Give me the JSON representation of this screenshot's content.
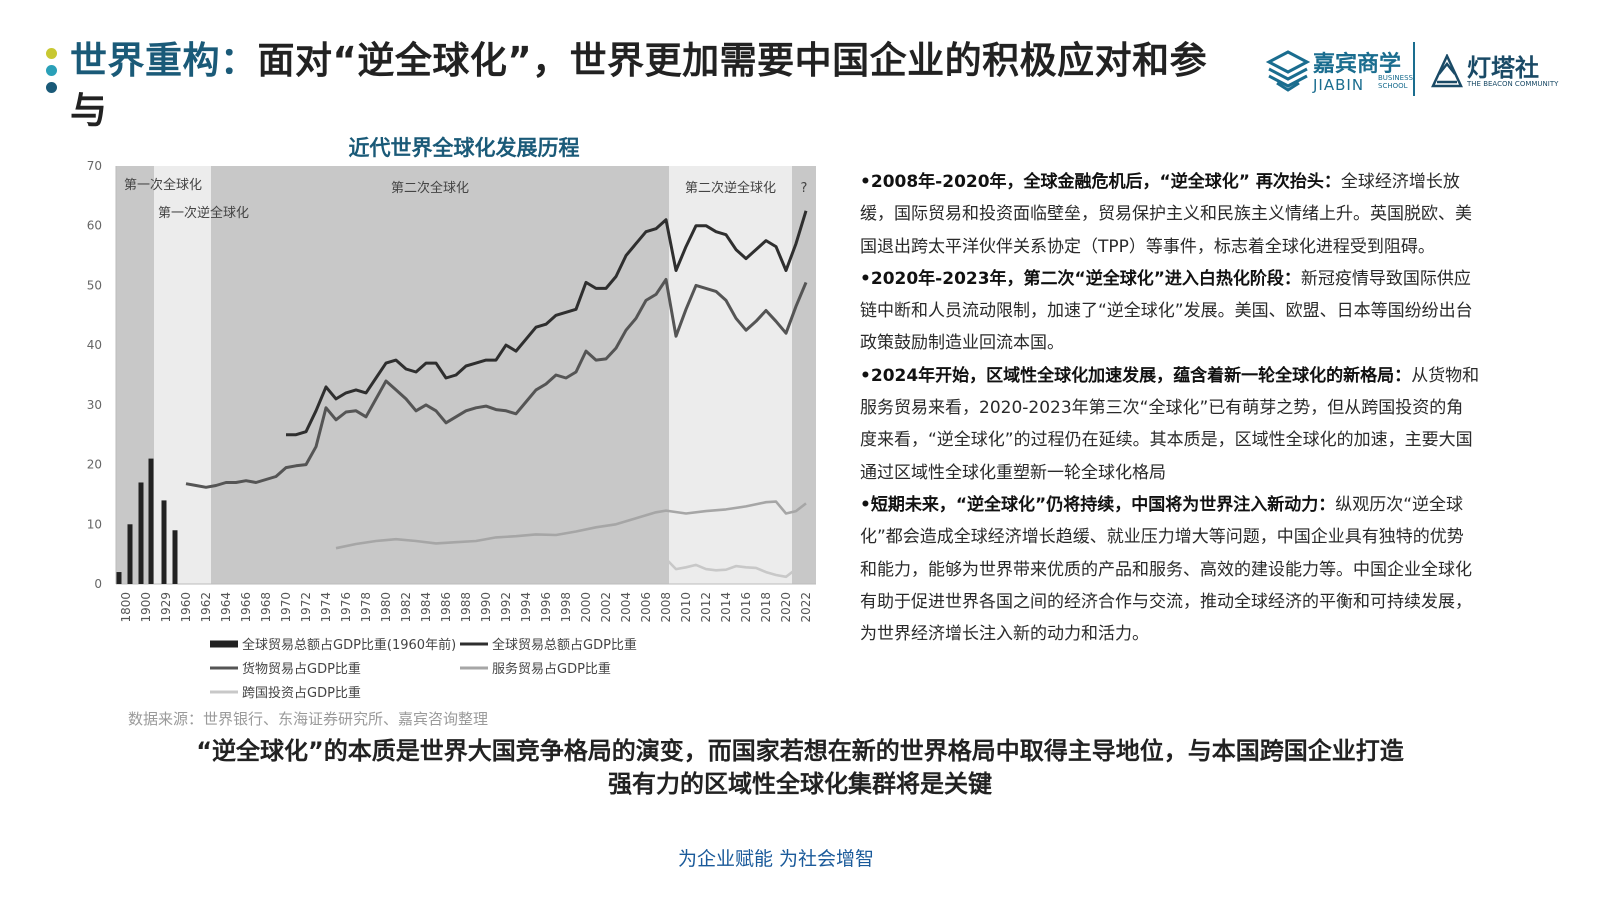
{
  "header": {
    "title_highlight": "世界重构：",
    "title_rest": "面对“逆全球化”，世界更加需要中国企业的积极应对和参与",
    "dots": [
      "#c8c832",
      "#2aa0b8",
      "#1a5a78"
    ],
    "logo1": {
      "name": "嘉宾商学",
      "sub": "JIABIN",
      "sub2a": "BUSINESS",
      "sub2b": "SCHOOL",
      "icon": "layered-diamond-logo-icon"
    },
    "logo2": {
      "name": "灯塔社",
      "sub": "THE BEACON COMMUNITY",
      "icon": "lighthouse-logo-icon"
    }
  },
  "chart_title": "近代世界全球化发展历程",
  "chart_data": {
    "type": "line",
    "title": "近代世界全球化发展历程",
    "xlabel": "",
    "ylabel": "",
    "ylim": [
      0,
      70
    ],
    "yticks": [
      0,
      10,
      20,
      30,
      40,
      50,
      60,
      70
    ],
    "grid": false,
    "legend_position": "bottom",
    "x_tick_labels": [
      "1800",
      "1900",
      "1929",
      "1960",
      "1962",
      "1964",
      "1966",
      "1968",
      "1970",
      "1972",
      "1974",
      "1976",
      "1978",
      "1980",
      "1982",
      "1984",
      "1986",
      "1988",
      "1990",
      "1992",
      "1994",
      "1996",
      "1998",
      "2000",
      "2002",
      "2004",
      "2006",
      "2008",
      "2010",
      "2012",
      "2014",
      "2016",
      "2018",
      "2020",
      "2022"
    ],
    "eras": [
      {
        "label": "第一次全球化",
        "from": "1800",
        "to": "1913",
        "shade": "#c8c8c8"
      },
      {
        "label": "第一次逆全球化",
        "from": "1913",
        "to": "1962",
        "shade": "#ececec"
      },
      {
        "label": "第二次全球化",
        "from": "1962",
        "to": "2008",
        "shade": "#c8c8c8"
      },
      {
        "label": "第二次逆全球化",
        "from": "2008",
        "to": "2020",
        "shade": "#ececec"
      },
      {
        "label": "?",
        "from": "2020",
        "to": "2022",
        "shade": "#c8c8c8"
      }
    ],
    "bar_series": {
      "name": "全球贸易总额占GDP比重(1960年前)",
      "color": "#222222",
      "x": [
        1800,
        1880,
        1900,
        1913,
        1929,
        1938
      ],
      "values": [
        2,
        10,
        17,
        21,
        14,
        9
      ]
    },
    "series": [
      {
        "name": "全球贸易总额占GDP比重",
        "color": "#2f2f2f",
        "x": [
          1970,
          1971,
          1972,
          1973,
          1974,
          1975,
          1976,
          1977,
          1978,
          1979,
          1980,
          1981,
          1982,
          1983,
          1984,
          1985,
          1986,
          1987,
          1988,
          1989,
          1990,
          1991,
          1992,
          1993,
          1994,
          1995,
          1996,
          1997,
          1998,
          1999,
          2000,
          2001,
          2002,
          2003,
          2004,
          2005,
          2006,
          2007,
          2008,
          2009,
          2010,
          2011,
          2012,
          2013,
          2014,
          2015,
          2016,
          2017,
          2018,
          2019,
          2020,
          2021,
          2022
        ],
        "values": [
          25,
          25,
          25.5,
          29,
          33,
          31,
          32,
          32.5,
          32,
          34.5,
          37,
          37.5,
          36,
          35.5,
          37,
          37,
          34.5,
          35,
          36.5,
          37,
          37.5,
          37.5,
          40,
          39,
          41,
          43,
          43.5,
          45,
          45.5,
          46,
          50.5,
          49.5,
          49.5,
          51.5,
          55,
          57,
          59,
          59.5,
          61,
          52.5,
          56.5,
          60,
          60,
          59,
          58.5,
          56,
          54.5,
          56,
          57.5,
          56.5,
          52.5,
          57,
          62.5
        ]
      },
      {
        "name": "货物贸易占GDP比重",
        "color": "#555555",
        "x": [
          1960,
          1961,
          1962,
          1963,
          1964,
          1965,
          1966,
          1967,
          1968,
          1969,
          1970,
          1971,
          1972,
          1973,
          1974,
          1975,
          1976,
          1977,
          1978,
          1979,
          1980,
          1981,
          1982,
          1983,
          1984,
          1985,
          1986,
          1987,
          1988,
          1989,
          1990,
          1991,
          1992,
          1993,
          1994,
          1995,
          1996,
          1997,
          1998,
          1999,
          2000,
          2001,
          2002,
          2003,
          2004,
          2005,
          2006,
          2007,
          2008,
          2009,
          2010,
          2011,
          2012,
          2013,
          2014,
          2015,
          2016,
          2017,
          2018,
          2019,
          2020,
          2021,
          2022
        ],
        "values": [
          16.8,
          16.5,
          16.2,
          16.5,
          17,
          17,
          17.3,
          17,
          17.5,
          18,
          19.5,
          19.8,
          20,
          23,
          29.5,
          27.5,
          28.8,
          29,
          28,
          31,
          34,
          32.5,
          31,
          29,
          30,
          29,
          27,
          28,
          29,
          29.5,
          29.8,
          29.2,
          29,
          28.5,
          30.5,
          32.5,
          33.5,
          35,
          34.5,
          35.5,
          39,
          37.5,
          37.7,
          39.5,
          42.5,
          44.5,
          47.5,
          48.5,
          51,
          41.5,
          46,
          50,
          49.5,
          49,
          47.5,
          44.5,
          42.5,
          44,
          45.8,
          44,
          42,
          46.5,
          50.5
        ]
      },
      {
        "name": "服务贸易占GDP比重",
        "color": "#a6a6a6",
        "x": [
          1975,
          1977,
          1979,
          1981,
          1983,
          1985,
          1987,
          1989,
          1991,
          1993,
          1995,
          1997,
          1999,
          2001,
          2003,
          2005,
          2007,
          2008,
          2010,
          2012,
          2014,
          2016,
          2018,
          2019,
          2020,
          2021,
          2022
        ],
        "values": [
          6,
          6.7,
          7.2,
          7.5,
          7.2,
          6.8,
          7,
          7.2,
          7.8,
          8,
          8.3,
          8.2,
          8.8,
          9.5,
          10,
          11,
          12,
          12.3,
          11.8,
          12.2,
          12.5,
          13,
          13.7,
          13.8,
          11.8,
          12.2,
          13.5
        ]
      },
      {
        "name": "跨国投资占GDP比重",
        "color": "#c8c8c8",
        "x": [
          1970,
          1972,
          1974,
          1976,
          1978,
          1980,
          1982,
          1984,
          1986,
          1988,
          1990,
          1992,
          1994,
          1996,
          1998,
          1999,
          2000,
          2001,
          2002,
          2003,
          2004,
          2005,
          2006,
          2007,
          2008,
          2009,
          2010,
          2011,
          2012,
          2013,
          2014,
          2015,
          2016,
          2017,
          2018,
          2019,
          2020,
          2021,
          2022
        ],
        "values": [
          0.6,
          0.5,
          0.5,
          0.4,
          0.5,
          0.6,
          0.5,
          0.5,
          0.7,
          0.9,
          1.2,
          0.9,
          1.1,
          1.5,
          2.3,
          3.8,
          4.3,
          2.5,
          2,
          2,
          2.5,
          3.5,
          4.5,
          5.5,
          4.2,
          2.5,
          2.8,
          3.2,
          2.5,
          2.3,
          2.4,
          3,
          2.8,
          2.7,
          2,
          1.5,
          1.2,
          2.5,
          2
        ]
      }
    ]
  },
  "legend": {
    "bar": "全球贸易总额占GDP比重(1960年前)",
    "total": "全球贸易总额占GDP比重",
    "goods": "货物贸易占GDP比重",
    "services": "服务贸易占GDP比重",
    "investment": "跨国投资占GDP比重"
  },
  "source": "数据来源：世界银行、东海证券研究所、嘉宾咨询整理",
  "bullets": [
    {
      "head": "•2008年-2020年，全球金融危机后，“逆全球化” 再次抬头：",
      "body": "全球经济增长放缓，国际贸易和投资面临壁垒，贸易保护主义和民族主义情绪上升。英国脱欧、美国退出跨太平洋伙伴关系协定（TPP）等事件，标志着全球化进程受到阻碍。"
    },
    {
      "head": "•2020年-2023年，第二次“逆全球化”进入白热化阶段：",
      "body": "新冠疫情导致国际供应链中断和人员流动限制，加速了“逆全球化”发展。美国、欧盟、日本等国纷纷出台政策鼓励制造业回流本国。"
    },
    {
      "head": "•2024年开始，区域性全球化加速发展，蕴含着新一轮全球化的新格局：",
      "body": "从货物和服务贸易来看，2020-2023年第三次“全球化”已有萌芽之势，但从跨国投资的角度来看，“逆全球化”的过程仍在延续。其本质是，区域性全球化的加速，主要大国通过区域性全球化重塑新一轮全球化格局"
    },
    {
      "head": "•短期未来，“逆全球化”仍将持续，中国将为世界注入新动力：",
      "body": "纵观历次“逆全球化”都会造成全球经济增长趋缓、就业压力增大等问题，中国企业具有独特的优势和能力，能够为世界带来优质的产品和服务、高效的建设能力等。中国企业全球化有助于促进世界各国之间的经济合作与交流，推动全球经济的平衡和可持续发展，为世界经济增长注入新的动力和活力。"
    }
  ],
  "conclusion_line1": "“逆全球化”的本质是世界大国竞争格局的演变，而国家若想在新的世界格局中取得主导地位，与本国跨国企业打造",
  "conclusion_line2": "强有力的区域性全球化集群将是关键",
  "footer": "为企业赋能 为社会增智"
}
